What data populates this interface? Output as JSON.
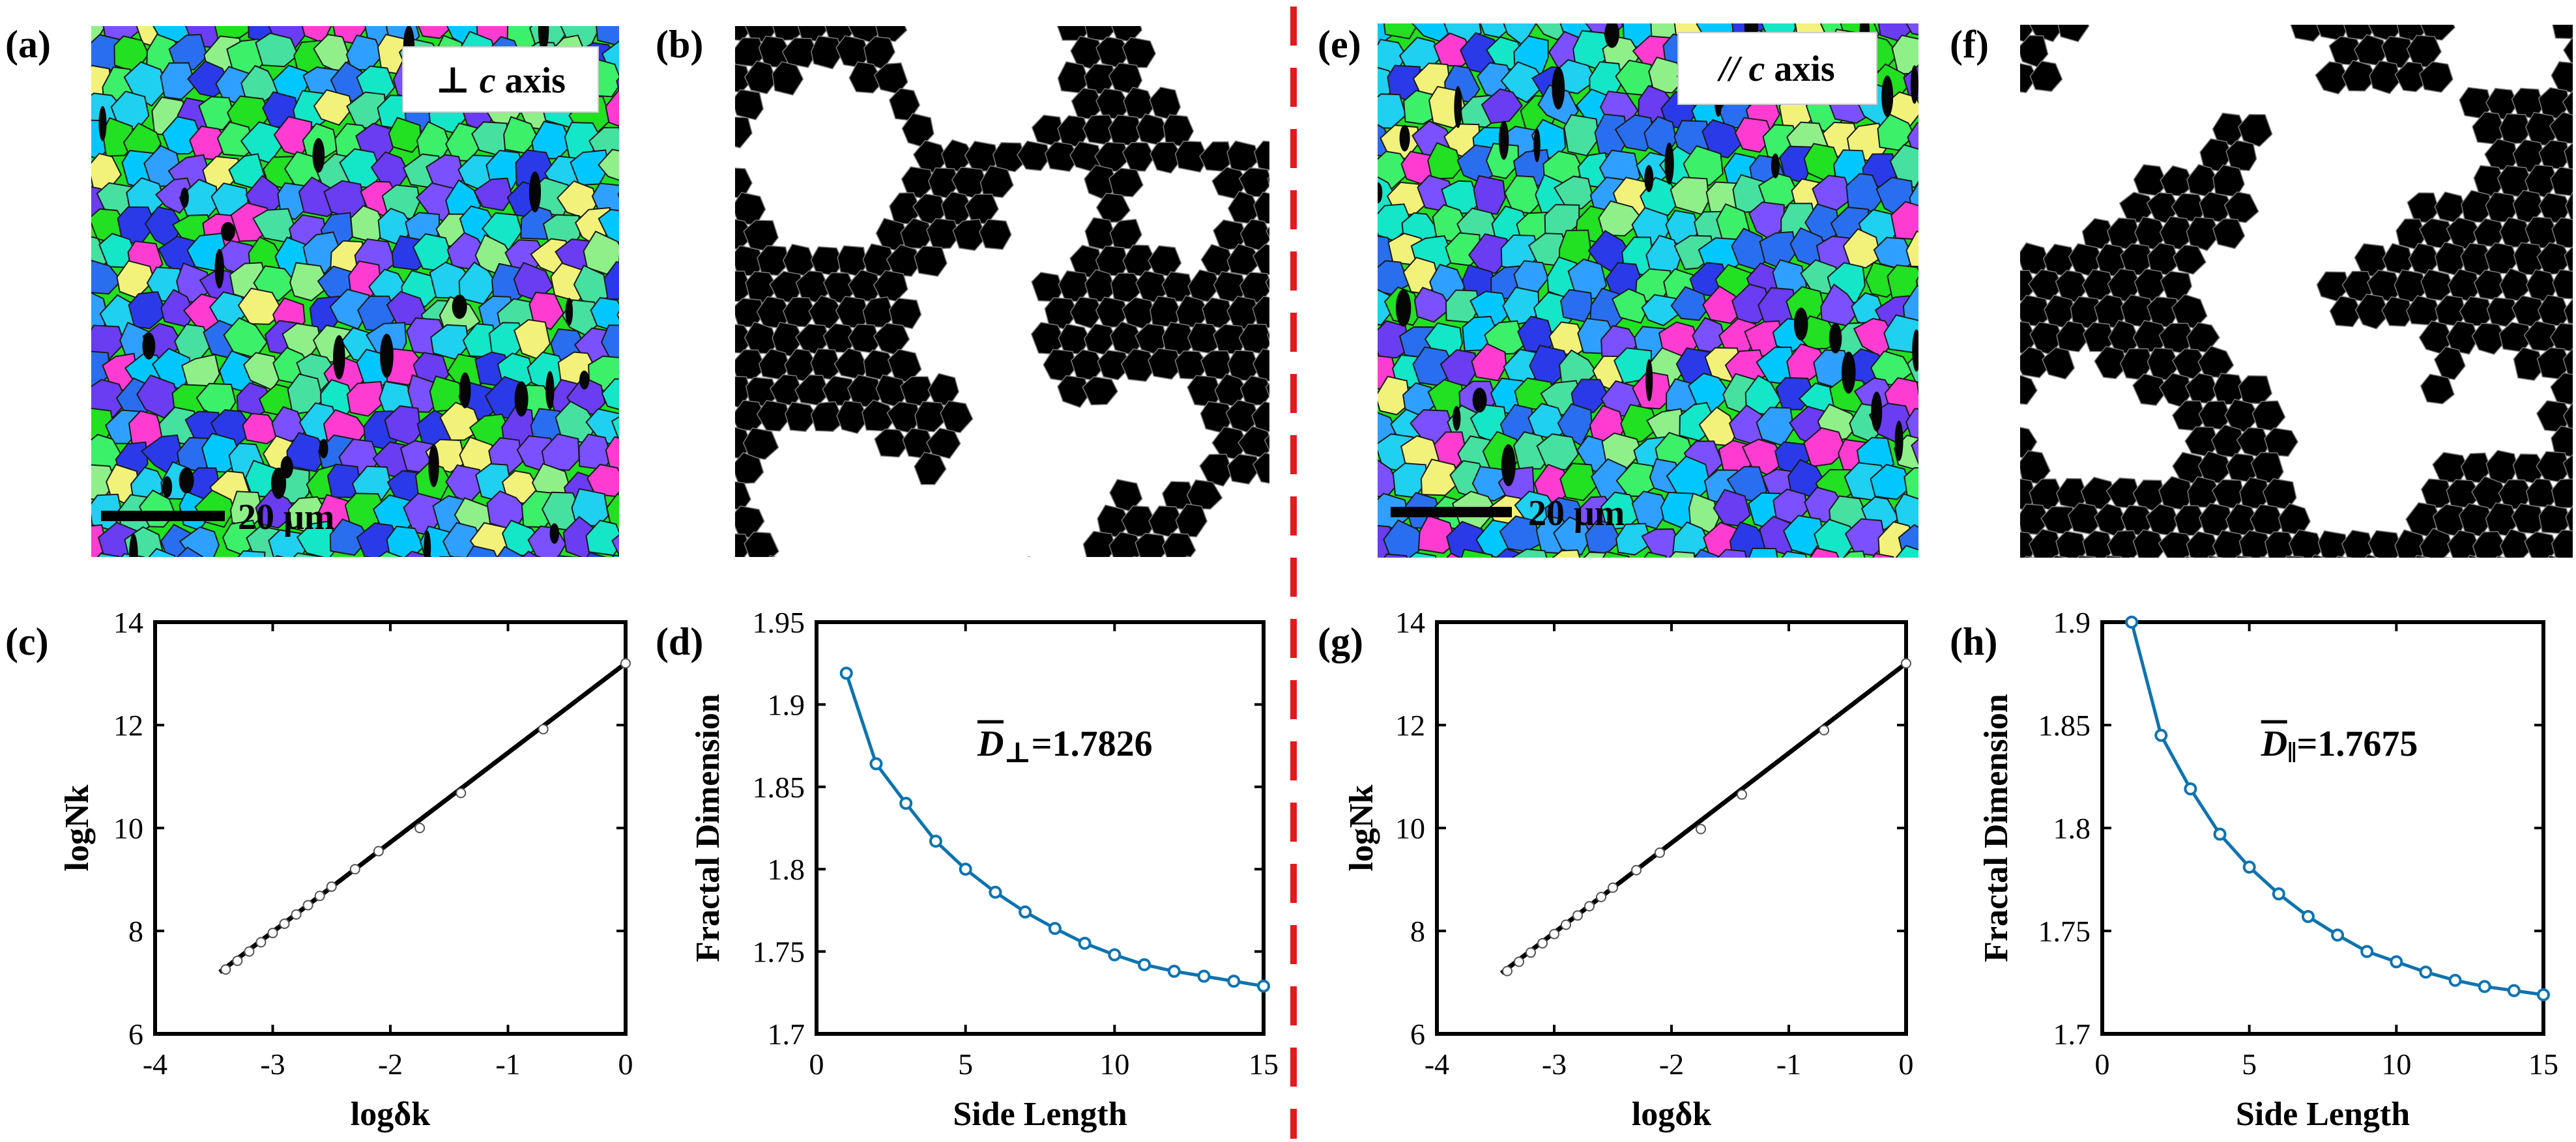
{
  "panels": {
    "a": {
      "label": "(a)",
      "badge": "⊥ c axis",
      "badge_symbol": "⊥",
      "badge_c": "c",
      "badge_word": "axis",
      "scalebar": "20 μm"
    },
    "b": {
      "label": "(b)"
    },
    "e": {
      "label": "(e)",
      "badge": "// c axis",
      "badge_symbol": "//",
      "badge_c": "c",
      "badge_word": "axis",
      "scalebar": "20 μm"
    },
    "f": {
      "label": "(f)"
    }
  },
  "colors": {
    "line_blue": "#1f77b4",
    "curve_blue": "#0d73b0",
    "divider_red": "#e41a1c",
    "ebsd_palette": [
      "#22e022",
      "#14e6c8",
      "#1fd0f0",
      "#2a6ef0",
      "#2a3ae8",
      "#6a3cf2",
      "#3cf06a",
      "#8ff08a",
      "#00c8ff",
      "#ff3cd2",
      "#f2f27a",
      "#2fa0ff",
      "#7a50ff",
      "#46e0a0"
    ]
  },
  "chart_data": [
    {
      "id": "c",
      "label": "(c)",
      "type": "scatter",
      "xlabel": "logδk",
      "ylabel": "logNk",
      "xlim": [
        -4,
        0
      ],
      "ylim": [
        6,
        14
      ],
      "xticks": [
        -4,
        -3,
        -2,
        -1,
        0
      ],
      "yticks": [
        6,
        8,
        10,
        12,
        14
      ],
      "tick_labels_x": [
        "-4",
        "-3",
        "-2",
        "-1",
        "0"
      ],
      "tick_labels_y": [
        "6",
        "8",
        "10",
        "12",
        "14"
      ],
      "series": [
        {
          "name": "data",
          "x": [
            -3.4,
            -3.3,
            -3.2,
            -3.1,
            -3.0,
            -2.9,
            -2.8,
            -2.7,
            -2.6,
            -2.5,
            -2.3,
            -2.1,
            -1.75,
            -1.4,
            -0.7,
            0.0
          ],
          "y": [
            7.25,
            7.42,
            7.6,
            7.78,
            7.96,
            8.14,
            8.32,
            8.5,
            8.68,
            8.86,
            9.2,
            9.55,
            10.0,
            10.68,
            11.92,
            13.2
          ]
        },
        {
          "name": "fit",
          "x": [
            -3.45,
            0.0
          ],
          "y": [
            7.2,
            13.2
          ]
        }
      ]
    },
    {
      "id": "d",
      "label": "(d)",
      "type": "line",
      "xlabel": "Side Length",
      "ylabel": "Fractal Dimension",
      "xlim": [
        0,
        15
      ],
      "ylim": [
        1.7,
        1.95
      ],
      "xticks": [
        0,
        5,
        10,
        15
      ],
      "yticks": [
        1.7,
        1.75,
        1.8,
        1.85,
        1.9,
        1.95
      ],
      "tick_labels_x": [
        "0",
        "5",
        "10",
        "15"
      ],
      "tick_labels_y": [
        "1.7",
        "1.75",
        "1.8",
        "1.85",
        "1.9",
        "1.95"
      ],
      "annotation": {
        "symbol": "D",
        "subscript": "⊥",
        "value": "=1.7826"
      },
      "series": [
        {
          "name": "Fractal Dimension",
          "x": [
            1,
            2,
            3,
            4,
            5,
            6,
            7,
            8,
            9,
            10,
            11,
            12,
            13,
            14,
            15
          ],
          "y": [
            1.919,
            1.864,
            1.84,
            1.817,
            1.8,
            1.786,
            1.774,
            1.764,
            1.755,
            1.748,
            1.742,
            1.738,
            1.735,
            1.732,
            1.729
          ]
        }
      ]
    },
    {
      "id": "g",
      "label": "(g)",
      "type": "scatter",
      "xlabel": "logδk",
      "ylabel": "logNk",
      "xlim": [
        -4,
        0
      ],
      "ylim": [
        6,
        14
      ],
      "xticks": [
        -4,
        -3,
        -2,
        -1,
        0
      ],
      "yticks": [
        6,
        8,
        10,
        12,
        14
      ],
      "tick_labels_x": [
        "-4",
        "-3",
        "-2",
        "-1",
        "0"
      ],
      "tick_labels_y": [
        "6",
        "8",
        "10",
        "12",
        "14"
      ],
      "series": [
        {
          "name": "data",
          "x": [
            -3.4,
            -3.3,
            -3.2,
            -3.1,
            -3.0,
            -2.9,
            -2.8,
            -2.7,
            -2.6,
            -2.5,
            -2.3,
            -2.1,
            -1.75,
            -1.4,
            -0.7,
            0.0
          ],
          "y": [
            7.22,
            7.4,
            7.58,
            7.76,
            7.94,
            8.12,
            8.3,
            8.48,
            8.66,
            8.84,
            9.18,
            9.52,
            9.98,
            10.65,
            11.9,
            13.2
          ]
        },
        {
          "name": "fit",
          "x": [
            -3.45,
            0.0
          ],
          "y": [
            7.18,
            13.2
          ]
        }
      ]
    },
    {
      "id": "h",
      "label": "(h)",
      "type": "line",
      "xlabel": "Side Length",
      "ylabel": "Fractal Dimension",
      "xlim": [
        0,
        15
      ],
      "ylim": [
        1.7,
        1.9
      ],
      "xticks": [
        0,
        5,
        10,
        15
      ],
      "yticks": [
        1.7,
        1.75,
        1.8,
        1.85,
        1.9
      ],
      "tick_labels_x": [
        "0",
        "5",
        "10",
        "15"
      ],
      "tick_labels_y": [
        "1.7",
        "1.75",
        "1.8",
        "1.85",
        "1.9"
      ],
      "annotation": {
        "symbol": "D",
        "subscript": "‖",
        "value": "=1.7675"
      },
      "series": [
        {
          "name": "Fractal Dimension",
          "x": [
            1,
            2,
            3,
            4,
            5,
            6,
            7,
            8,
            9,
            10,
            11,
            12,
            13,
            14,
            15
          ],
          "y": [
            1.9,
            1.845,
            1.819,
            1.797,
            1.781,
            1.768,
            1.757,
            1.748,
            1.74,
            1.735,
            1.73,
            1.726,
            1.723,
            1.721,
            1.719
          ]
        }
      ]
    }
  ]
}
